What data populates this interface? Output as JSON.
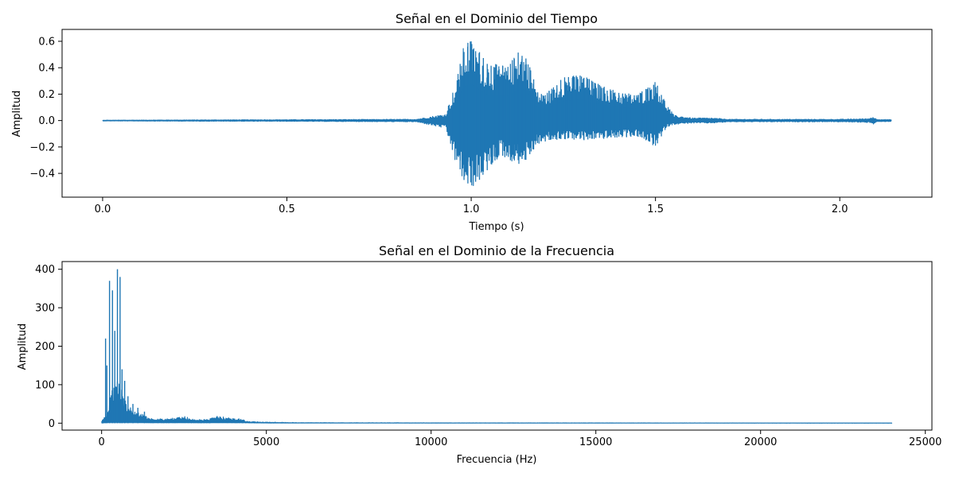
{
  "colors": {
    "series": "#1f77b4",
    "axes": "#000000",
    "background": "#ffffff"
  },
  "chart_data": [
    {
      "type": "line",
      "title": "Señal en el Dominio del Tiempo",
      "xlabel": "Tiempo (s)",
      "ylabel": "Amplitud",
      "xlim": [
        -0.11,
        2.25
      ],
      "ylim": [
        -0.58,
        0.69
      ],
      "xticks": [
        0.0,
        0.5,
        1.0,
        1.5,
        2.0
      ],
      "xtick_labels": [
        "0.0",
        "0.5",
        "1.0",
        "1.5",
        "2.0"
      ],
      "yticks": [
        -0.4,
        -0.2,
        0.0,
        0.2,
        0.4,
        0.6
      ],
      "ytick_labels": [
        "−0.4",
        "−0.2",
        "0.0",
        "0.2",
        "0.4",
        "0.6"
      ],
      "grid": false,
      "series": [
        {
          "envelope": {
            "x": [
              0.0,
              0.23,
              0.5,
              0.85,
              0.93,
              0.96,
              0.98,
              1.0,
              1.02,
              1.05,
              1.08,
              1.1,
              1.13,
              1.15,
              1.18,
              1.2,
              1.25,
              1.3,
              1.35,
              1.4,
              1.45,
              1.5,
              1.53,
              1.55,
              1.6,
              1.65,
              1.7,
              2.0,
              2.08,
              2.09,
              2.1,
              2.14
            ],
            "upper": [
              0.003,
              0.005,
              0.007,
              0.01,
              0.05,
              0.3,
              0.57,
              0.62,
              0.53,
              0.42,
              0.43,
              0.41,
              0.55,
              0.5,
              0.22,
              0.2,
              0.33,
              0.35,
              0.27,
              0.22,
              0.2,
              0.3,
              0.13,
              0.04,
              0.02,
              0.02,
              0.01,
              0.01,
              0.015,
              0.03,
              0.01,
              0.007
            ],
            "lower": [
              -0.003,
              -0.005,
              -0.006,
              -0.01,
              -0.06,
              -0.35,
              -0.47,
              -0.52,
              -0.46,
              -0.37,
              -0.26,
              -0.3,
              -0.33,
              -0.3,
              -0.18,
              -0.16,
              -0.14,
              -0.15,
              -0.14,
              -0.13,
              -0.12,
              -0.2,
              -0.05,
              -0.03,
              -0.02,
              -0.02,
              -0.01,
              -0.01,
              -0.015,
              -0.03,
              -0.01,
              -0.007
            ]
          }
        }
      ]
    },
    {
      "type": "line",
      "title": "Señal en el Dominio de la Frecuencia",
      "xlabel": "Frecuencia (Hz)",
      "ylabel": "Amplitud",
      "xlim": [
        -1200,
        25200
      ],
      "ylim": [
        -18,
        420
      ],
      "xticks": [
        0,
        5000,
        10000,
        15000,
        20000,
        25000
      ],
      "xtick_labels": [
        "0",
        "5000",
        "10000",
        "15000",
        "20000",
        "25000"
      ],
      "yticks": [
        0,
        100,
        200,
        300,
        400
      ],
      "ytick_labels": [
        "0",
        "100",
        "200",
        "300",
        "400"
      ],
      "grid": false,
      "series": [
        {
          "peaks": {
            "x": [
              120,
              160,
              240,
              330,
              400,
              480,
              560,
              620,
              700,
              800,
              950,
              1100,
              1300
            ],
            "y": [
              220,
              150,
              370,
              345,
              240,
              400,
              380,
              140,
              110,
              70,
              50,
              40,
              30
            ]
          },
          "envelope": {
            "x": [
              0,
              150,
              300,
              500,
              700,
              1000,
              1300,
              1600,
              2000,
              2500,
              2800,
              3300,
              3500,
              4200,
              4400,
              5000,
              6000,
              10000,
              24000
            ],
            "upper": [
              5,
              30,
              80,
              130,
              60,
              35,
              20,
              12,
              12,
              18,
              10,
              12,
              18,
              12,
              5,
              3,
              1.5,
              1,
              0.5
            ],
            "lower": [
              0,
              2,
              3,
              3,
              3,
              3,
              2,
              1,
              1,
              1,
              1,
              1,
              1,
              1,
              1,
              0.5,
              0.3,
              0.2,
              0.1
            ]
          }
        }
      ]
    }
  ]
}
